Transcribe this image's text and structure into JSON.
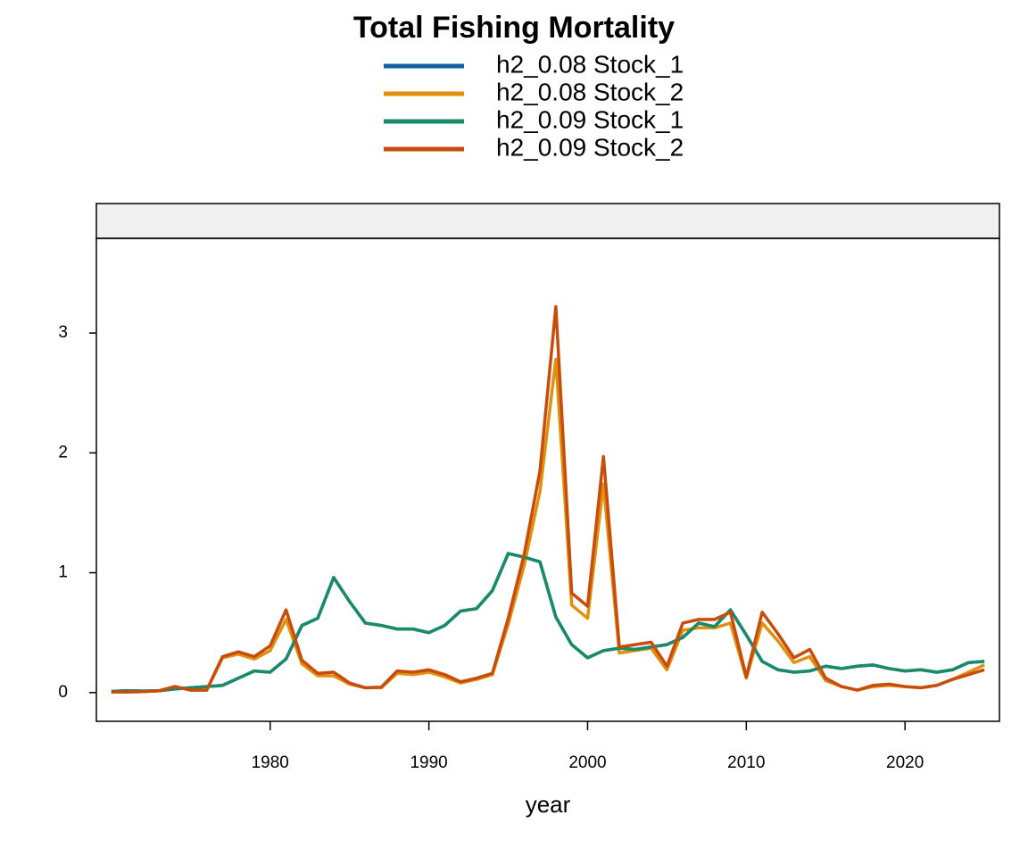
{
  "chart_data": {
    "type": "line",
    "title": "Total Fishing Mortality",
    "x_label": "year",
    "x": [
      1970,
      1971,
      1972,
      1973,
      1974,
      1975,
      1976,
      1977,
      1978,
      1979,
      1980,
      1981,
      1982,
      1983,
      1984,
      1985,
      1986,
      1987,
      1988,
      1989,
      1990,
      1991,
      1992,
      1993,
      1994,
      1995,
      1996,
      1997,
      1998,
      1999,
      2000,
      2001,
      2002,
      2003,
      2004,
      2005,
      2006,
      2007,
      2008,
      2009,
      2010,
      2011,
      2012,
      2013,
      2014,
      2015,
      2016,
      2017,
      2018,
      2019,
      2020,
      2021,
      2022,
      2023,
      2024,
      2025
    ],
    "series": [
      {
        "name": "h2_0.08 Stock_1",
        "color": "#1060a0",
        "values": [
          0.01,
          0.015,
          0.012,
          0.015,
          0.03,
          0.04,
          0.05,
          0.06,
          0.12,
          0.18,
          0.17,
          0.28,
          0.56,
          0.62,
          0.96,
          0.76,
          0.58,
          0.56,
          0.53,
          0.53,
          0.5,
          0.56,
          0.68,
          0.7,
          0.85,
          1.16,
          1.13,
          1.09,
          0.63,
          0.4,
          0.29,
          0.35,
          0.37,
          0.36,
          0.38,
          0.4,
          0.46,
          0.58,
          0.55,
          0.69,
          0.48,
          0.26,
          0.19,
          0.17,
          0.18,
          0.22,
          0.2,
          0.22,
          0.23,
          0.2,
          0.18,
          0.19,
          0.17,
          0.19,
          0.25,
          0.26
        ]
      },
      {
        "name": "h2_0.08 Stock_2",
        "color": "#e0900c",
        "values": [
          0.005,
          0.005,
          0.008,
          0.015,
          0.05,
          0.02,
          0.02,
          0.29,
          0.32,
          0.28,
          0.35,
          0.61,
          0.24,
          0.14,
          0.14,
          0.07,
          0.04,
          0.04,
          0.16,
          0.15,
          0.17,
          0.13,
          0.08,
          0.11,
          0.15,
          0.57,
          1.06,
          1.68,
          2.78,
          0.73,
          0.62,
          1.74,
          0.33,
          0.35,
          0.37,
          0.19,
          0.52,
          0.54,
          0.54,
          0.58,
          0.12,
          0.58,
          0.43,
          0.25,
          0.3,
          0.1,
          0.05,
          0.02,
          0.05,
          0.06,
          0.05,
          0.04,
          0.06,
          0.11,
          0.17,
          0.23
        ]
      },
      {
        "name": "h2_0.09 Stock_1",
        "color": "#1a8a68",
        "values": [
          0.01,
          0.015,
          0.012,
          0.015,
          0.03,
          0.04,
          0.05,
          0.06,
          0.12,
          0.18,
          0.17,
          0.28,
          0.56,
          0.62,
          0.96,
          0.76,
          0.58,
          0.56,
          0.53,
          0.53,
          0.5,
          0.56,
          0.68,
          0.7,
          0.85,
          1.16,
          1.13,
          1.09,
          0.63,
          0.4,
          0.29,
          0.35,
          0.37,
          0.36,
          0.38,
          0.4,
          0.46,
          0.58,
          0.55,
          0.69,
          0.48,
          0.26,
          0.19,
          0.17,
          0.18,
          0.22,
          0.2,
          0.22,
          0.23,
          0.2,
          0.18,
          0.19,
          0.17,
          0.19,
          0.25,
          0.26
        ]
      },
      {
        "name": "h2_0.09 Stock_2",
        "color": "#c84c0c",
        "values": [
          0.005,
          0.005,
          0.008,
          0.015,
          0.05,
          0.02,
          0.02,
          0.3,
          0.34,
          0.3,
          0.39,
          0.69,
          0.27,
          0.16,
          0.17,
          0.08,
          0.04,
          0.045,
          0.18,
          0.17,
          0.19,
          0.15,
          0.09,
          0.12,
          0.16,
          0.62,
          1.15,
          1.85,
          3.22,
          0.83,
          0.72,
          1.97,
          0.38,
          0.4,
          0.42,
          0.22,
          0.58,
          0.61,
          0.61,
          0.67,
          0.13,
          0.67,
          0.49,
          0.29,
          0.36,
          0.12,
          0.05,
          0.02,
          0.06,
          0.07,
          0.05,
          0.04,
          0.06,
          0.11,
          0.15,
          0.19
        ]
      }
    ],
    "xlim": [
      1969.05,
      2025.95
    ],
    "xticks": [
      1980,
      1990,
      2000,
      2010,
      2020
    ],
    "ylim": [
      -0.24,
      3.79
    ],
    "yticks": [
      0,
      1,
      2,
      3
    ]
  }
}
